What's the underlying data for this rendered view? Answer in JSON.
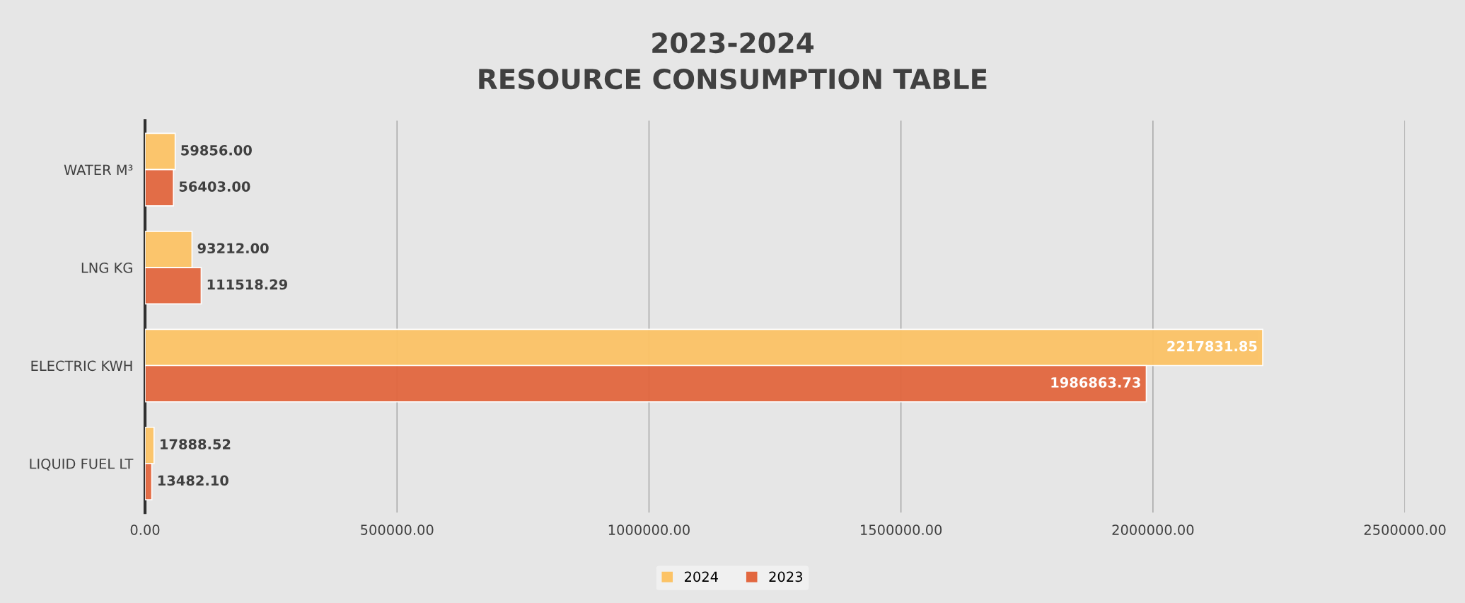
{
  "chart_data": {
    "type": "bar",
    "orientation": "horizontal",
    "title": "2023-2024",
    "subtitle": "RESOURCE CONSUMPTION TABLE",
    "categories": [
      "WATER M³",
      "LNG KG",
      "ELECTRIC KWH",
      "LIQUID FUEL LT"
    ],
    "series": [
      {
        "name": "2024",
        "color": "#fcc366",
        "values": [
          59856.0,
          93212.0,
          2217831.85,
          17888.52
        ],
        "value_labels": [
          "59856.00",
          "93212.00",
          "2217831.85",
          "17888.52"
        ]
      },
      {
        "name": "2023",
        "color": "#e2673f",
        "values": [
          56403.0,
          111518.29,
          1986863.73,
          13482.1
        ],
        "value_labels": [
          "56403.00",
          "111518.29",
          "1986863.73",
          "13482.10"
        ]
      }
    ],
    "xlim": [
      0,
      2500000
    ],
    "xticks": [
      {
        "value": 0,
        "label": "0.00"
      },
      {
        "value": 500000,
        "label": "500000.00"
      },
      {
        "value": 1000000,
        "label": "1000000.00"
      },
      {
        "value": 1500000,
        "label": "1500000.00"
      },
      {
        "value": 2000000,
        "label": "2000000.00"
      },
      {
        "value": 2500000,
        "label": "2500000.00"
      }
    ],
    "grid": "x",
    "legend": "bottom"
  }
}
